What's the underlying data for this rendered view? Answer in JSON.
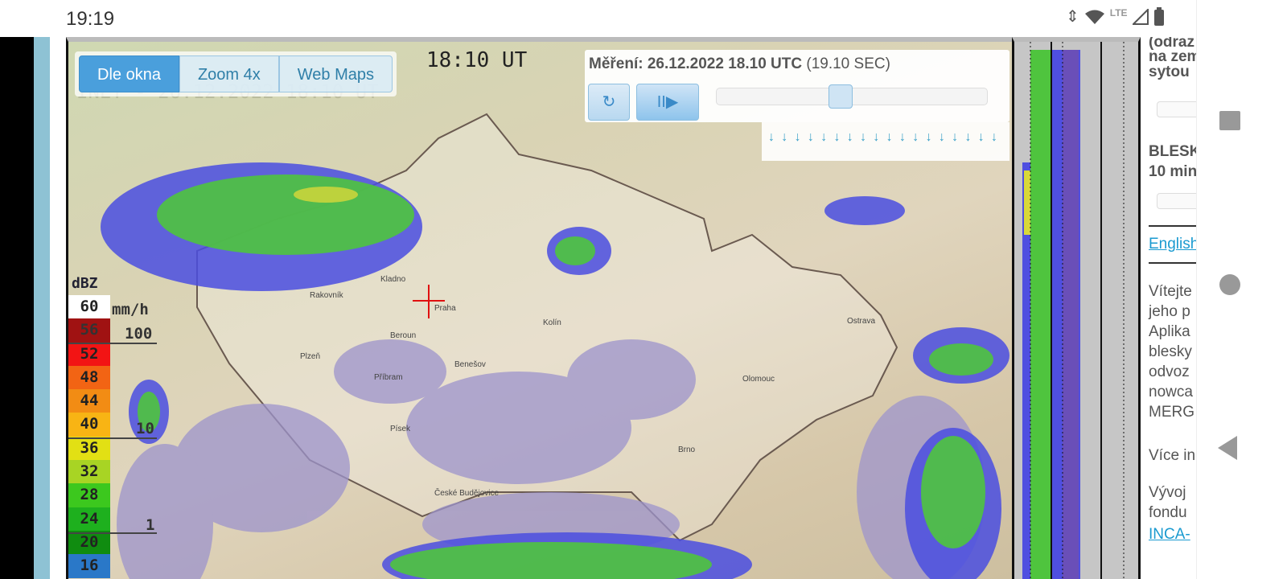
{
  "status_bar": {
    "time": "19:19",
    "lte": "LTE",
    "icons": [
      "data-arrows-icon",
      "wifi-icon",
      "signal-icon",
      "battery-icon"
    ]
  },
  "map": {
    "timestamp": "18:10 UT",
    "faint_overlay": "INET - 26.12.2022 18:10 UT",
    "view_tabs": [
      {
        "label": "Dle okna",
        "active": true
      },
      {
        "label": "Zoom 4x",
        "active": false
      },
      {
        "label": "Web Maps",
        "active": false
      }
    ],
    "cities": [
      "Praha",
      "Plzeň",
      "Brno",
      "Ostrava",
      "Olomouc",
      "Kladno",
      "Kolín",
      "Příbram",
      "Benešov",
      "Beroun",
      "Rakovník",
      "Písek",
      "České Budějovice"
    ],
    "marker": "red-crosshair"
  },
  "controls": {
    "measurement_label": "Měření: 26.12.2022 18.10 UTC",
    "local_time": "(19.10 SEC)",
    "refresh_icon": "refresh-icon",
    "play_pause_label": "II▶",
    "slider_position_percent": 50,
    "timeline_ticks": 18
  },
  "legend": {
    "unit": "dBZ",
    "rain_unit": "mm/h",
    "rain_marks": [
      "100",
      "10",
      "1"
    ],
    "cells": [
      {
        "value": "60",
        "color": "#ffffff"
      },
      {
        "value": "56",
        "color": "#a01212"
      },
      {
        "value": "52",
        "color": "#f21414"
      },
      {
        "value": "48",
        "color": "#f26414"
      },
      {
        "value": "44",
        "color": "#f28c14"
      },
      {
        "value": "40",
        "color": "#f8b414"
      },
      {
        "value": "36",
        "color": "#e2e014"
      },
      {
        "value": "32",
        "color": "#a8d424"
      },
      {
        "value": "28",
        "color": "#3cc81e"
      },
      {
        "value": "24",
        "color": "#1eb01e"
      },
      {
        "value": "20",
        "color": "#108c10"
      },
      {
        "value": "16",
        "color": "#2a78c8"
      }
    ]
  },
  "side_text": {
    "lines1": [
      "(odraz",
      "na zem",
      "sytou"
    ],
    "lines2": [
      "BLESK",
      "10 min"
    ],
    "english_link": "English",
    "intro": [
      "Vítejte",
      "jeho p",
      "Aplika",
      "blesky",
      "odvoz",
      "nowca",
      "MERG"
    ],
    "more": "Více in",
    "dev": [
      "Vývoj",
      "fondu"
    ],
    "inca_link": "INCA-"
  },
  "nav_bar": {
    "icons": [
      "recents-icon",
      "home-icon",
      "back-icon"
    ]
  }
}
